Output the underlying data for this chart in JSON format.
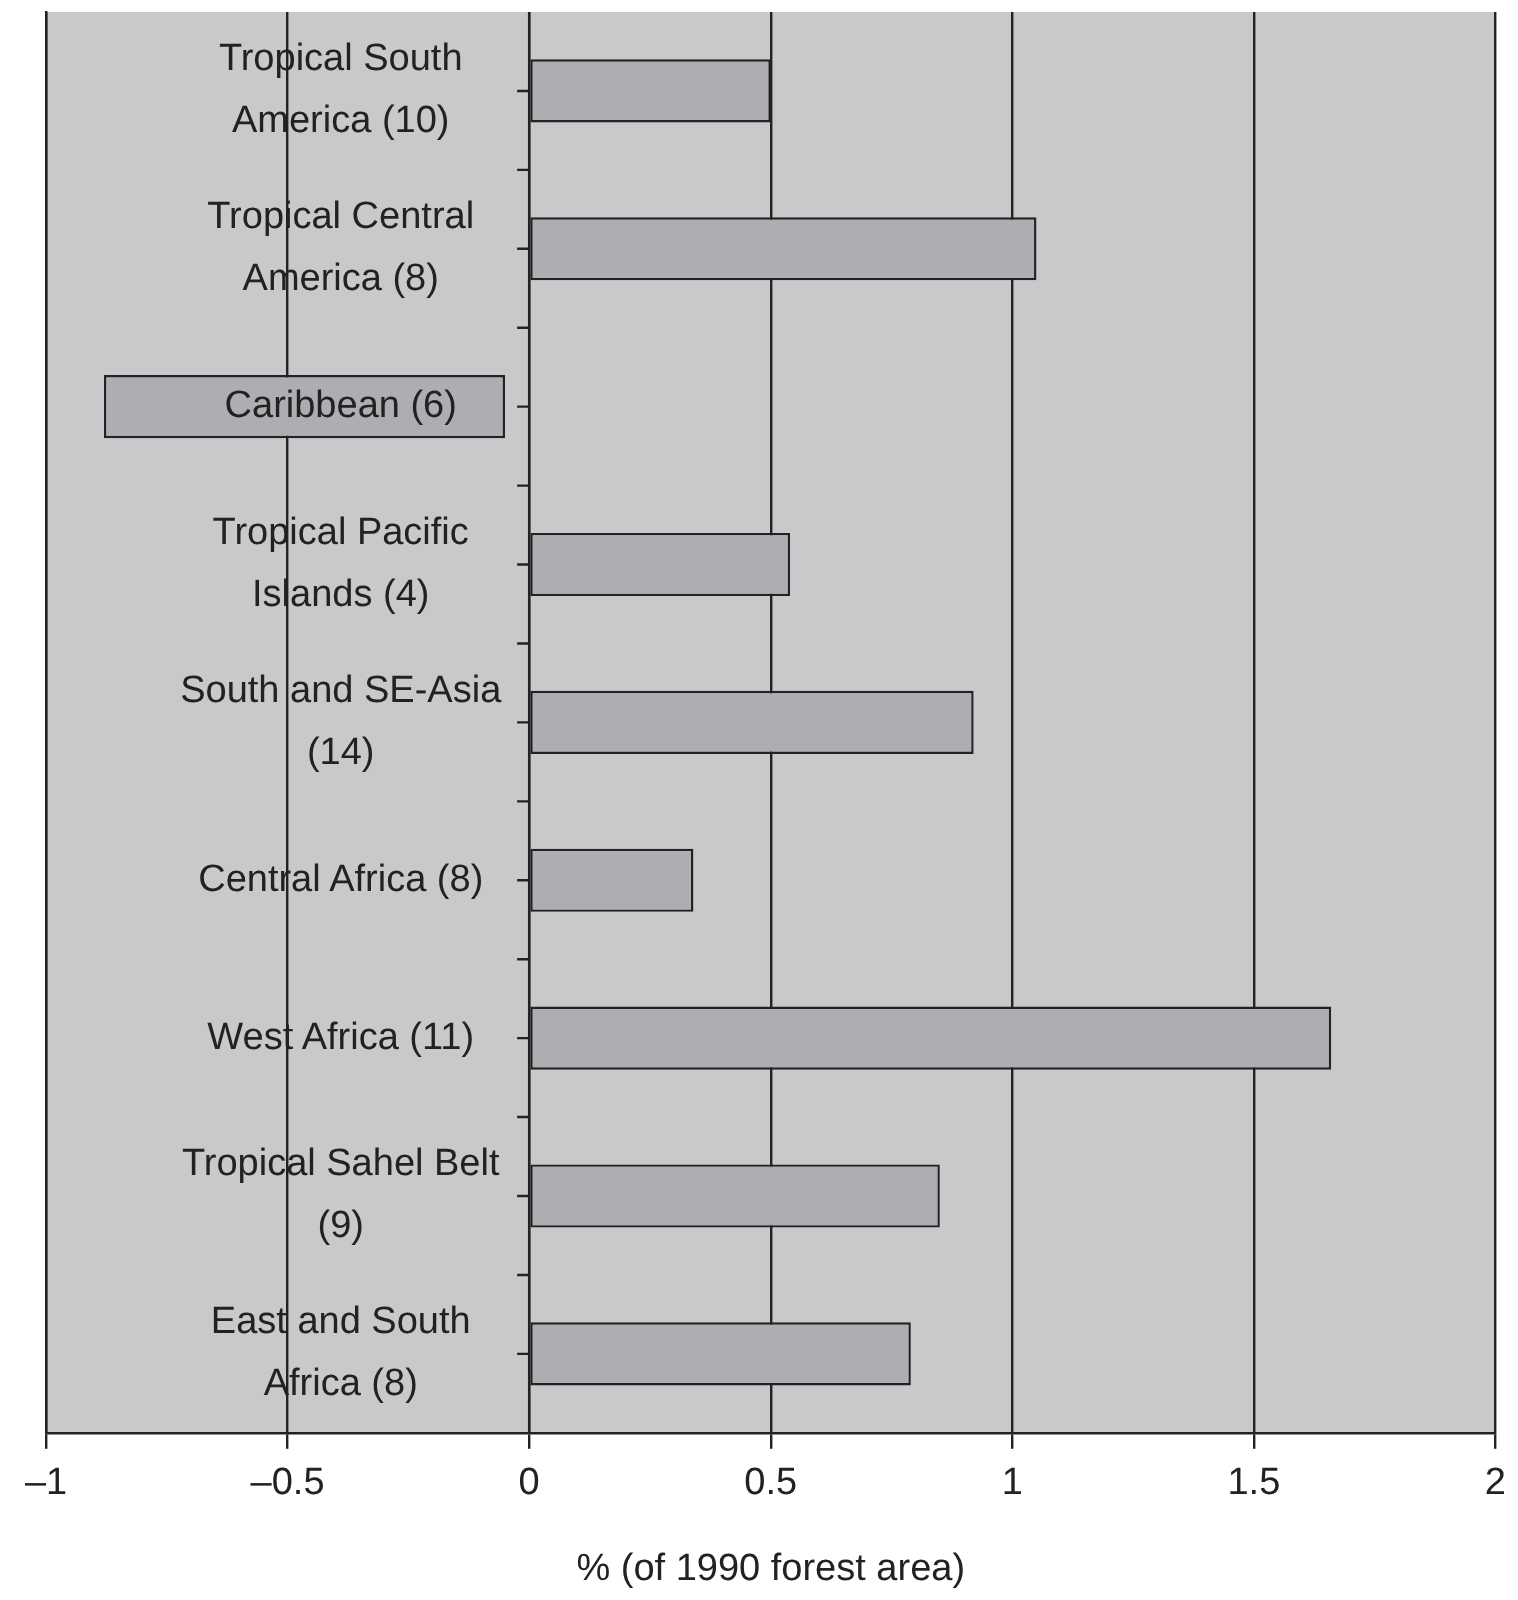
{
  "chart_data": {
    "type": "bar",
    "orientation": "horizontal",
    "xlabel": "% (of 1990 forest area)",
    "categories": [
      "Tropical South America (10)",
      "Tropical Central America (8)",
      "Caribbean (6)",
      "Tropical Pacific Islands (4)",
      "South and SE-Asia (14)",
      "Central Africa (8)",
      "West Africa (11)",
      "Tropical Sahel Belt (9)",
      "East and South Africa (8)"
    ],
    "values": [
      0.5,
      1.05,
      -0.83,
      0.54,
      0.92,
      0.34,
      1.66,
      0.85,
      0.79
    ],
    "base": [
      0,
      0,
      -0.05,
      0,
      0,
      0,
      0,
      0,
      0
    ],
    "color": "#adaeb1",
    "xlim": [
      -1,
      2
    ],
    "xticks": [
      {
        "value": -1,
        "label": "–1"
      },
      {
        "value": -0.5,
        "label": "–0.5"
      },
      0,
      0.5,
      1,
      1.5,
      2
    ],
    "grid": "x",
    "legend": false
  }
}
